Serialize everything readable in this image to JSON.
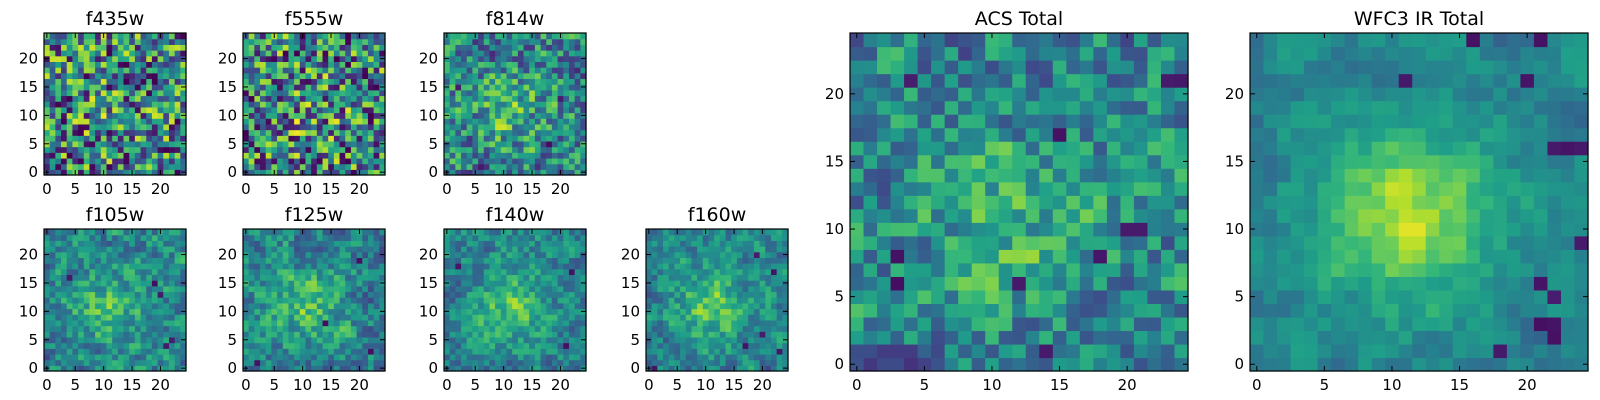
{
  "chart_data": [
    {
      "type": "heatmap",
      "title": "f435w",
      "xlim": [
        0,
        24
      ],
      "ylim": [
        0,
        24
      ],
      "xticks": [
        0,
        5,
        10,
        15,
        20
      ],
      "yticks": [
        0,
        5,
        10,
        15,
        20
      ],
      "colormap": "viridis",
      "center_brightness": 0.1,
      "texture": 0.8,
      "dark_spots": [
        [
          7,
          5
        ],
        [
          8,
          5
        ],
        [
          3,
          4
        ],
        [
          13,
          6
        ],
        [
          19,
          7
        ]
      ],
      "seed": 11
    },
    {
      "type": "heatmap",
      "title": "f555w",
      "xlim": [
        0,
        24
      ],
      "ylim": [
        0,
        24
      ],
      "xticks": [
        0,
        5,
        10,
        15,
        20
      ],
      "yticks": [
        0,
        5,
        10,
        15,
        20
      ],
      "colormap": "viridis",
      "center_brightness": 0.15,
      "texture": 0.8,
      "dark_spots": [
        [
          3,
          2
        ],
        [
          8,
          6
        ],
        [
          11,
          4
        ],
        [
          17,
          16
        ]
      ],
      "seed": 23
    },
    {
      "type": "heatmap",
      "title": "f814w",
      "xlim": [
        0,
        24
      ],
      "ylim": [
        0,
        24
      ],
      "xticks": [
        0,
        5,
        10,
        15,
        20
      ],
      "yticks": [
        0,
        5,
        10,
        15,
        20
      ],
      "colormap": "viridis",
      "center_brightness": 0.35,
      "texture": 0.7,
      "dark_spots": [
        [
          2,
          15
        ],
        [
          18,
          5
        ],
        [
          20,
          13
        ],
        [
          6,
          1
        ]
      ],
      "seed": 37
    },
    {
      "type": "heatmap",
      "title": "f105w",
      "xlim": [
        0,
        24
      ],
      "ylim": [
        0,
        24
      ],
      "xticks": [
        0,
        5,
        10,
        15,
        20
      ],
      "yticks": [
        0,
        5,
        10,
        15,
        20
      ],
      "colormap": "viridis",
      "center_brightness": 0.4,
      "texture": 0.55,
      "dark_spots": [
        [
          4,
          16
        ],
        [
          19,
          15
        ],
        [
          20,
          13
        ],
        [
          22,
          5
        ],
        [
          21,
          4
        ]
      ],
      "seed": 41
    },
    {
      "type": "heatmap",
      "title": "f125w",
      "xlim": [
        0,
        24
      ],
      "ylim": [
        0,
        24
      ],
      "xticks": [
        0,
        5,
        10,
        15,
        20
      ],
      "yticks": [
        0,
        5,
        10,
        15,
        20
      ],
      "colormap": "viridis",
      "center_brightness": 0.4,
      "texture": 0.55,
      "dark_spots": [
        [
          14,
          8
        ],
        [
          2,
          1
        ],
        [
          22,
          3
        ],
        [
          20,
          19
        ]
      ],
      "seed": 53
    },
    {
      "type": "heatmap",
      "title": "f140w",
      "xlim": [
        0,
        24
      ],
      "ylim": [
        0,
        24
      ],
      "xticks": [
        0,
        5,
        10,
        15,
        20
      ],
      "yticks": [
        0,
        5,
        10,
        15,
        20
      ],
      "colormap": "viridis",
      "center_brightness": 0.45,
      "texture": 0.5,
      "dark_spots": [
        [
          22,
          17
        ],
        [
          21,
          4
        ],
        [
          2,
          18
        ]
      ],
      "seed": 67
    },
    {
      "type": "heatmap",
      "title": "f160w",
      "xlim": [
        0,
        24
      ],
      "ylim": [
        0,
        24
      ],
      "xticks": [
        0,
        5,
        10,
        15,
        20
      ],
      "yticks": [
        0,
        5,
        10,
        15,
        20
      ],
      "colormap": "viridis",
      "center_brightness": 0.5,
      "texture": 0.5,
      "dark_spots": [
        [
          19,
          20
        ],
        [
          22,
          17
        ],
        [
          20,
          6
        ],
        [
          23,
          3
        ],
        [
          17,
          4
        ],
        [
          1,
          0
        ]
      ],
      "seed": 79
    },
    {
      "type": "heatmap",
      "title": "ACS Total",
      "xlim": [
        0,
        24
      ],
      "ylim": [
        0,
        24
      ],
      "xticks": [
        0,
        5,
        10,
        15,
        20
      ],
      "yticks": [
        0,
        5,
        10,
        15,
        20
      ],
      "colormap": "viridis",
      "center_brightness": 0.3,
      "texture": 0.6,
      "dark_spots": [
        [
          4,
          21
        ],
        [
          15,
          17
        ],
        [
          21,
          10
        ],
        [
          20,
          10
        ],
        [
          18,
          8
        ],
        [
          3,
          8
        ],
        [
          3,
          6
        ],
        [
          12,
          6
        ],
        [
          23,
          21
        ],
        [
          24,
          21
        ],
        [
          14,
          1
        ]
      ],
      "seed": 97
    },
    {
      "type": "heatmap",
      "title": "WFC3 IR Total",
      "xlim": [
        0,
        24
      ],
      "ylim": [
        0,
        24
      ],
      "xticks": [
        0,
        5,
        10,
        15,
        20
      ],
      "yticks": [
        0,
        5,
        10,
        15,
        20
      ],
      "colormap": "viridis",
      "center_brightness": 0.7,
      "texture": 0.35,
      "dark_spots": [
        [
          16,
          24
        ],
        [
          21,
          24
        ],
        [
          11,
          21
        ],
        [
          20,
          21
        ],
        [
          22,
          16
        ],
        [
          23,
          16
        ],
        [
          24,
          16
        ],
        [
          24,
          9
        ],
        [
          21,
          6
        ],
        [
          22,
          5
        ],
        [
          22,
          3
        ],
        [
          21,
          3
        ],
        [
          22,
          2
        ],
        [
          18,
          1
        ]
      ],
      "seed": 113
    }
  ]
}
